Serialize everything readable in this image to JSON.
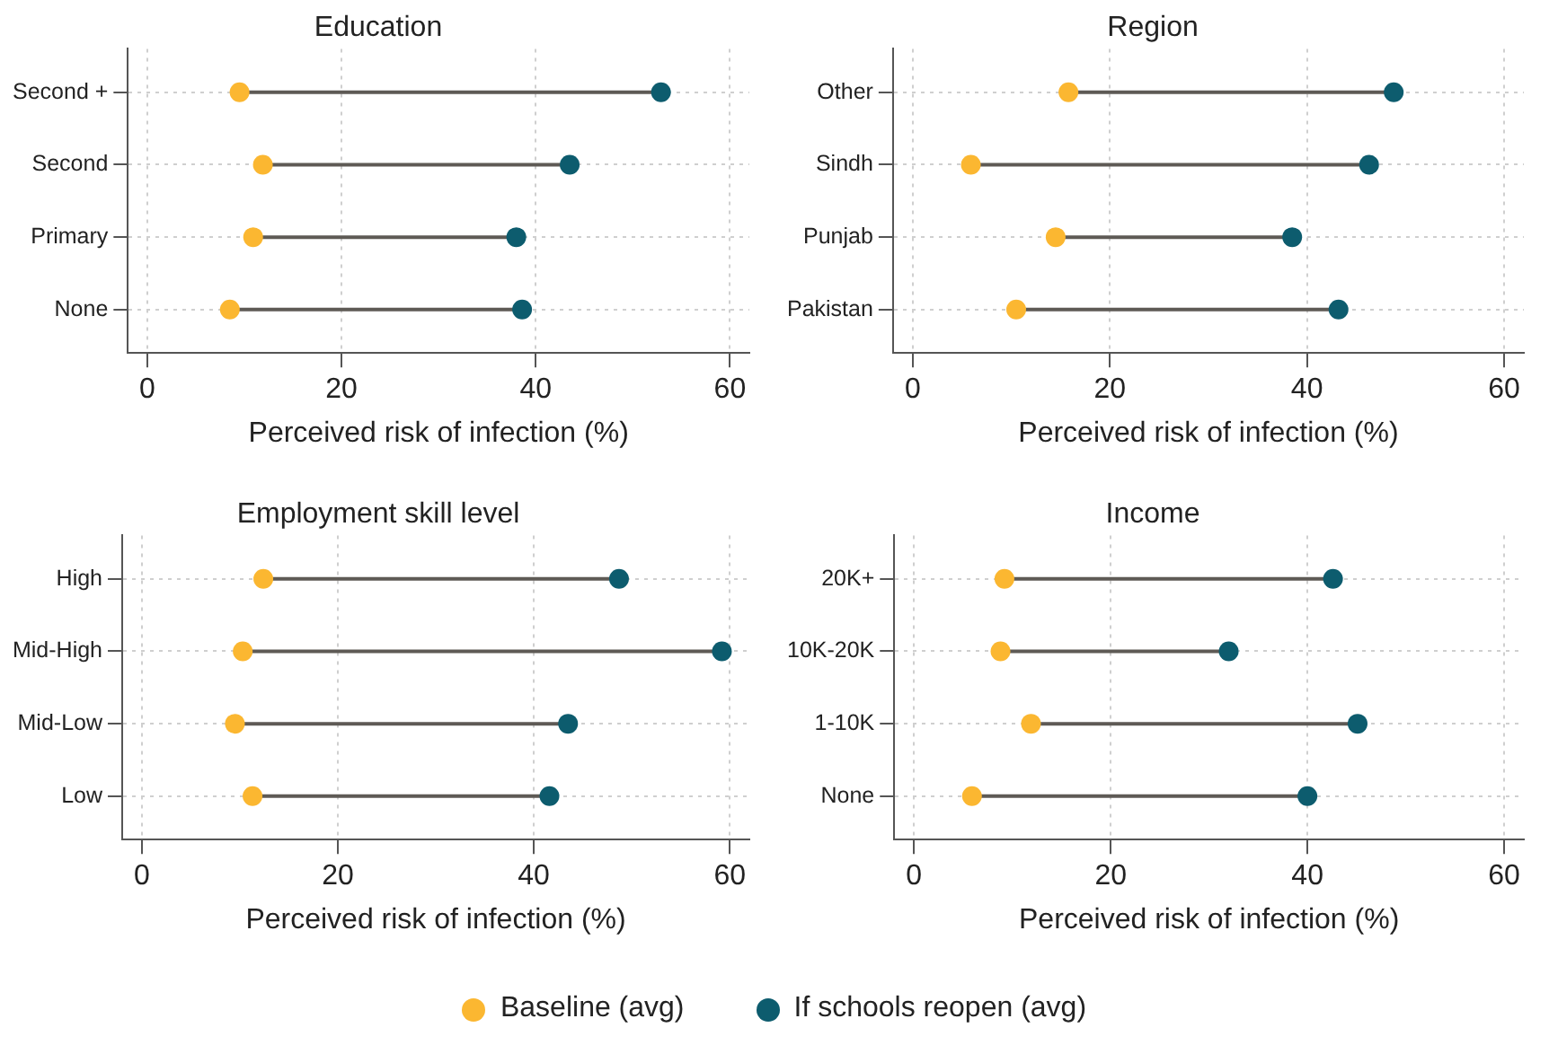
{
  "chart_data": [
    {
      "type": "scatter",
      "orientation": "horizontal",
      "title": "Education",
      "xlabel": "Perceived risk of infection (%)",
      "categories": [
        "Second +",
        "Second",
        "Primary",
        "None"
      ],
      "xlim": [
        -2,
        62
      ],
      "xticks": [
        0,
        20,
        40,
        60
      ],
      "grid": true,
      "marker": "circle",
      "series": [
        {
          "color": "#fbb731",
          "values": [
            9.5,
            11.9,
            10.9,
            8.5
          ]
        },
        {
          "color": "#0d5c6e",
          "values": [
            52.9,
            43.5,
            38,
            38.6
          ]
        }
      ]
    },
    {
      "type": "scatter",
      "orientation": "horizontal",
      "title": "Region",
      "xlabel": "Perceived risk of infection (%)",
      "categories": [
        "Other",
        "Sindh",
        "Punjab",
        "Pakistan"
      ],
      "xlim": [
        -2,
        62
      ],
      "xticks": [
        0,
        20,
        40,
        60
      ],
      "grid": true,
      "marker": "circle",
      "series": [
        {
          "color": "#fbb731",
          "values": [
            15.8,
            5.9,
            14.5,
            10.5
          ]
        },
        {
          "color": "#0d5c6e",
          "values": [
            48.8,
            46.3,
            38.5,
            43.2
          ]
        }
      ]
    },
    {
      "type": "scatter",
      "orientation": "horizontal",
      "title": "Employment skill level",
      "xlabel": "Perceived risk of infection (%)",
      "categories": [
        "High",
        "Mid-High",
        "Mid-Low",
        "Low"
      ],
      "xlim": [
        -2,
        62
      ],
      "xticks": [
        0,
        20,
        40,
        60
      ],
      "grid": true,
      "marker": "circle",
      "series": [
        {
          "color": "#fbb731",
          "values": [
            12.4,
            10.3,
            9.5,
            11.3
          ]
        },
        {
          "color": "#0d5c6e",
          "values": [
            48.7,
            59.2,
            43.5,
            41.6
          ]
        }
      ]
    },
    {
      "type": "scatter",
      "orientation": "horizontal",
      "title": "Income",
      "xlabel": "Perceived risk of infection (%)",
      "categories": [
        "20K+",
        "10K-20K",
        "1-10K",
        "None"
      ],
      "xlim": [
        -2,
        62
      ],
      "xticks": [
        0,
        20,
        40,
        60
      ],
      "grid": true,
      "marker": "circle",
      "legend": "bottom",
      "series": [
        {
          "name": "Baseline (avg)",
          "color": "#fbb731",
          "values": [
            9.2,
            8.8,
            11.9,
            5.9
          ]
        },
        {
          "name": "If schools reopen (avg)",
          "color": "#0d5c6e",
          "values": [
            42.6,
            32,
            45.1,
            40
          ]
        }
      ]
    }
  ]
}
